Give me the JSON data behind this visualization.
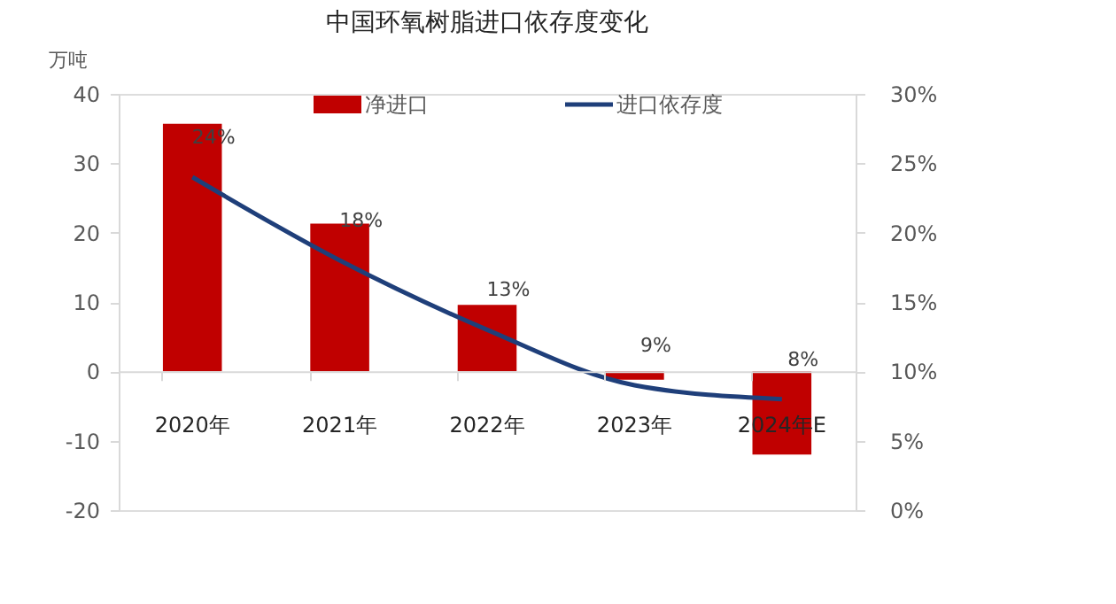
{
  "chart_data": {
    "type": "bar",
    "title": "中国环氧树脂进口依存度变化",
    "ylabel": "万吨",
    "categories": [
      "2020年",
      "2021年",
      "2022年",
      "2023年",
      "2024年E"
    ],
    "series": [
      {
        "name": "净进口",
        "color": "#c00000",
        "values": [
          35.7,
          21.3,
          9.6,
          -1.2,
          -12.0
        ]
      },
      {
        "name": "进口依存度",
        "type": "line",
        "axis": "y2",
        "color": "#1f3f7a",
        "values": [
          24,
          18,
          13,
          9,
          8
        ],
        "value_labels": [
          "24%",
          "18%",
          "13%",
          "9%",
          "8%"
        ]
      }
    ],
    "ylim": [
      -20,
      40
    ],
    "yticks": [
      -20,
      -10,
      0,
      10,
      20,
      30,
      40
    ],
    "y2lim": [
      0,
      30
    ],
    "y2ticks": [
      {
        "value": 0,
        "label": "0%"
      },
      {
        "value": 5,
        "label": "5%"
      },
      {
        "value": 10,
        "label": "10%"
      },
      {
        "value": 15,
        "label": "15%"
      },
      {
        "value": 20,
        "label": "20%"
      },
      {
        "value": 25,
        "label": "25%"
      },
      {
        "value": 30,
        "label": "30%"
      }
    ],
    "grid": false,
    "legend": "top"
  }
}
